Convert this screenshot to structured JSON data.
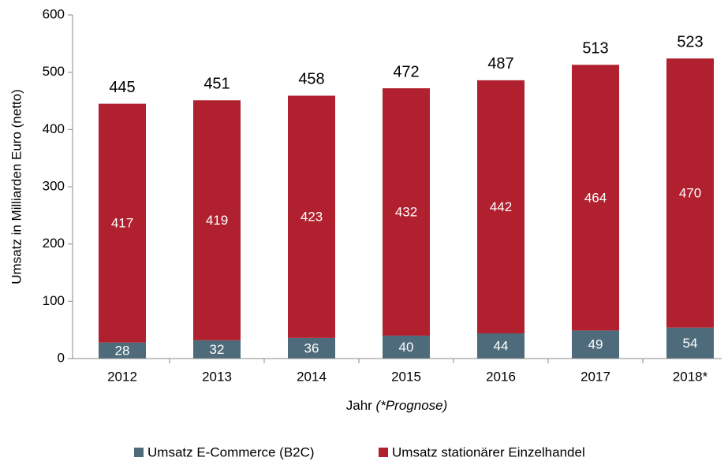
{
  "chart_data": {
    "type": "stacked_bar",
    "categories": [
      "2012",
      "2013",
      "2014",
      "2015",
      "2016",
      "2017",
      "2018*"
    ],
    "series": [
      {
        "name": "Umsatz E-Commerce (B2C)",
        "color": "#4e6b7b",
        "values": [
          28,
          32,
          36,
          40,
          44,
          49,
          54
        ]
      },
      {
        "name": "Umsatz stationärer Einzelhandel",
        "color": "#b0202e",
        "values": [
          417,
          419,
          423,
          432,
          442,
          464,
          470
        ]
      }
    ],
    "totals": [
      445,
      451,
      458,
      472,
      487,
      513,
      523
    ],
    "ylabel": "Umsatz in Milliarden Euro (netto)",
    "xlabel": "Jahr",
    "xlabel_note": "(*Prognose)",
    "ylim": [
      0,
      600
    ],
    "yticks": [
      0,
      100,
      200,
      300,
      400,
      500,
      600
    ],
    "legend": "bottom"
  }
}
